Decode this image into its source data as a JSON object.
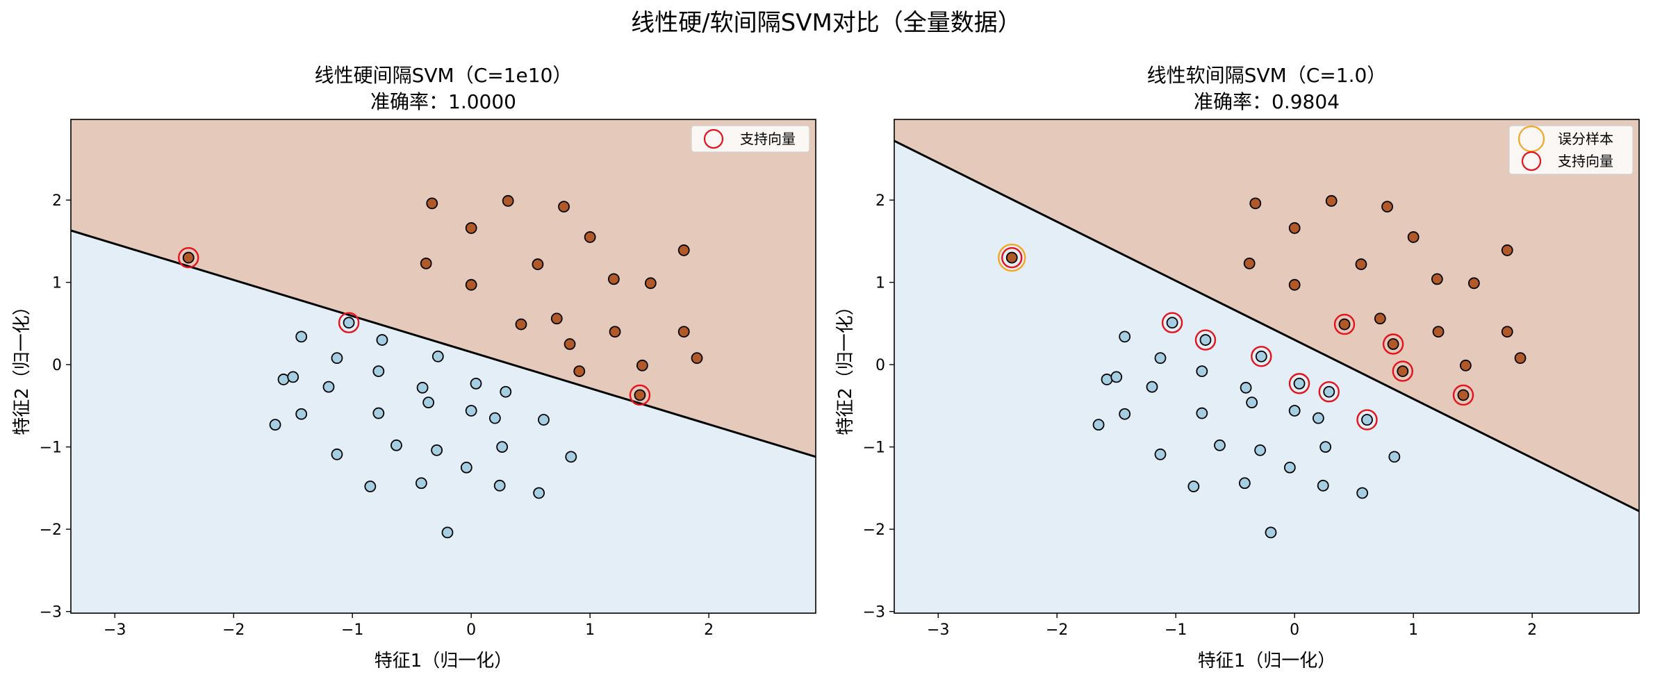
{
  "figure": {
    "suptitle": "线性硬/软间隔SVM对比（全量数据）",
    "colors": {
      "class0_region": "#e3eef6",
      "class1_region": "#e5c9bb",
      "class0_point": "#a6cee3",
      "class1_point": "#b15928",
      "boundary": "#000000",
      "support_vector_ring": "#e3121b",
      "misclassified_ring": "#f5a623"
    }
  },
  "chart_data": [
    {
      "type": "scatter",
      "panel": "hard",
      "title_line1": "线性硬间隔SVM（C=1e10）",
      "title_line2": "准确率：1.0000",
      "xlabel": "特征1（归一化）",
      "ylabel": "特征2（归一化）",
      "xlim": [
        -3.37,
        2.9
      ],
      "ylim": [
        -3.02,
        2.98
      ],
      "xticks": [
        -3,
        -2,
        -1,
        0,
        1,
        2
      ],
      "yticks": [
        -3,
        -2,
        -1,
        0,
        1,
        2
      ],
      "boundary_line": [
        [
          -3.37,
          1.63
        ],
        [
          2.9,
          -1.12
        ]
      ],
      "legend": {
        "position": "top-right",
        "entries": [
          {
            "label": "支持向量",
            "marker": "support_vector"
          }
        ]
      },
      "support_vectors": [
        [
          -2.38,
          1.3
        ],
        [
          -1.03,
          0.51
        ],
        [
          1.42,
          -0.37
        ]
      ],
      "misclassified": []
    },
    {
      "type": "scatter",
      "panel": "soft",
      "title_line1": "线性软间隔SVM（C=1.0）",
      "title_line2": "准确率：0.9804",
      "xlabel": "特征1（归一化）",
      "ylabel": "特征2（归一化）",
      "xlim": [
        -3.37,
        2.9
      ],
      "ylim": [
        -3.02,
        2.98
      ],
      "xticks": [
        -3,
        -2,
        -1,
        0,
        1,
        2
      ],
      "yticks": [
        -3,
        -2,
        -1,
        0,
        1,
        2
      ],
      "boundary_line": [
        [
          -3.37,
          2.72
        ],
        [
          2.9,
          -1.78
        ]
      ],
      "legend": {
        "position": "top-right",
        "entries": [
          {
            "label": "误分样本",
            "marker": "misclassified"
          },
          {
            "label": "支持向量",
            "marker": "support_vector"
          }
        ]
      },
      "support_vectors": [
        [
          -2.38,
          1.3
        ],
        [
          -1.03,
          0.51
        ],
        [
          -0.75,
          0.3
        ],
        [
          -0.28,
          0.1
        ],
        [
          0.04,
          -0.23
        ],
        [
          0.29,
          -0.33
        ],
        [
          0.61,
          -0.67
        ],
        [
          0.42,
          0.49
        ],
        [
          0.83,
          0.25
        ],
        [
          0.91,
          -0.08
        ],
        [
          1.42,
          -0.37
        ]
      ],
      "misclassified": [
        [
          -2.38,
          1.3
        ]
      ]
    }
  ],
  "points": {
    "class0": [
      [
        -1.43,
        0.34
      ],
      [
        -1.58,
        -0.18
      ],
      [
        -1.5,
        -0.15
      ],
      [
        -1.65,
        -0.73
      ],
      [
        -1.43,
        -0.6
      ],
      [
        -1.2,
        -0.27
      ],
      [
        -1.13,
        0.08
      ],
      [
        -1.03,
        0.51
      ],
      [
        -0.75,
        0.3
      ],
      [
        -0.78,
        -0.08
      ],
      [
        -0.78,
        -0.59
      ],
      [
        -1.13,
        -1.09
      ],
      [
        -0.85,
        -1.48
      ],
      [
        -0.63,
        -0.98
      ],
      [
        -0.41,
        -0.28
      ],
      [
        -0.36,
        -0.46
      ],
      [
        -0.28,
        0.1
      ],
      [
        -0.29,
        -1.04
      ],
      [
        -0.42,
        -1.44
      ],
      [
        -0.2,
        -2.04
      ],
      [
        -0.04,
        -1.25
      ],
      [
        0.04,
        -0.23
      ],
      [
        0.0,
        -0.56
      ],
      [
        0.2,
        -0.65
      ],
      [
        0.29,
        -0.33
      ],
      [
        0.26,
        -1.0
      ],
      [
        0.24,
        -1.47
      ],
      [
        0.57,
        -1.56
      ],
      [
        0.61,
        -0.67
      ],
      [
        0.84,
        -1.12
      ]
    ],
    "class1": [
      [
        -2.38,
        1.3
      ],
      [
        -0.33,
        1.96
      ],
      [
        -0.38,
        1.23
      ],
      [
        0.0,
        1.66
      ],
      [
        0.0,
        0.97
      ],
      [
        0.31,
        1.99
      ],
      [
        0.78,
        1.92
      ],
      [
        1.0,
        1.55
      ],
      [
        0.56,
        1.22
      ],
      [
        1.2,
        1.04
      ],
      [
        1.51,
        0.99
      ],
      [
        1.79,
        1.39
      ],
      [
        0.42,
        0.49
      ],
      [
        0.72,
        0.56
      ],
      [
        0.83,
        0.25
      ],
      [
        0.91,
        -0.08
      ],
      [
        1.21,
        0.4
      ],
      [
        1.44,
        -0.01
      ],
      [
        1.42,
        -0.37
      ],
      [
        1.79,
        0.4
      ],
      [
        1.9,
        0.08
      ]
    ]
  }
}
